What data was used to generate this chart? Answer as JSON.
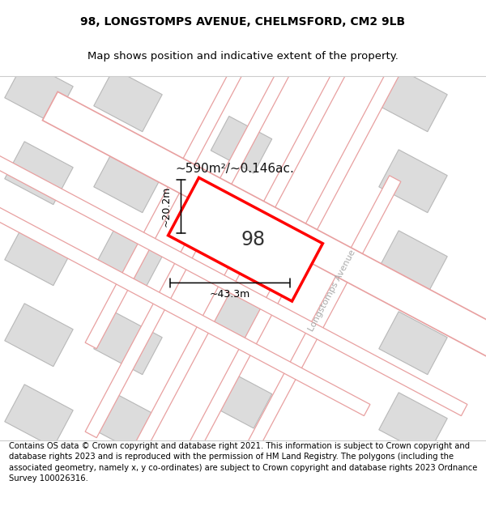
{
  "title": "98, LONGSTOMPS AVENUE, CHELMSFORD, CM2 9LB",
  "subtitle": "Map shows position and indicative extent of the property.",
  "footer": "Contains OS data © Crown copyright and database right 2021. This information is subject to Crown copyright and database rights 2023 and is reproduced with the permission of HM Land Registry. The polygons (including the associated geometry, namely x, y co-ordinates) are subject to Crown copyright and database rights 2023 Ordnance Survey 100026316.",
  "bg_color": "#ffffff",
  "map_bg": "#f0ede8",
  "road_color": "#ffffff",
  "road_line_color": "#e8a0a0",
  "building_fill": "#dcdcdc",
  "building_edge": "#b8b8b8",
  "highlight_color": "#ff0000",
  "highlight_fill": "#ffffff",
  "area_text": "~590m²/~0.146ac.",
  "width_text": "~43.3m",
  "height_text": "~20.2m",
  "number_text": "98",
  "street_label": "Longstomps Avenue",
  "title_fontsize": 10,
  "subtitle_fontsize": 9.5,
  "footer_fontsize": 7.2,
  "title_weight": "normal"
}
